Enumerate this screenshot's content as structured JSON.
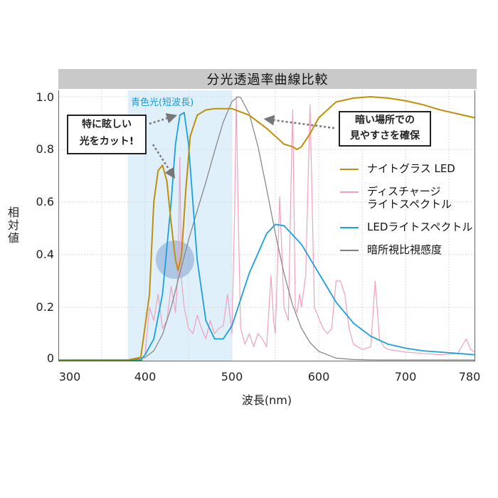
{
  "chart_data": {
    "type": "line",
    "title": "分光透過率曲線比較",
    "xlabel": "波長(nm)",
    "ylabel": "相対値",
    "xlim": [
      300,
      780
    ],
    "ylim": [
      0,
      1.0
    ],
    "x_ticks": [
      "300",
      "400",
      "500",
      "600",
      "700",
      "780"
    ],
    "y_ticks": [
      "1.0",
      "0.8",
      "0.6",
      "0.4",
      "0.2",
      "0"
    ],
    "grid": true,
    "legend_position": "right-middle",
    "highlight_band": {
      "label": "青色光(短波長)",
      "x_range": [
        380,
        500
      ],
      "color": "#dff0fb"
    },
    "annotations": [
      {
        "text": "特に眩しい\n光をカット!",
        "points_to": [
          [
            440,
            0.95
          ],
          [
            435,
            0.38
          ]
        ]
      },
      {
        "text": "暗い場所での\n見やすさを確保",
        "points_to": [
          [
            520,
            0.9
          ]
        ]
      }
    ],
    "series": [
      {
        "name": "ナイトグラス LED",
        "color": "#c08f0a",
        "x": [
          300,
          380,
          395,
          405,
          410,
          415,
          420,
          425,
          430,
          435,
          438,
          442,
          447,
          452,
          460,
          470,
          480,
          500,
          520,
          540,
          560,
          570,
          575,
          580,
          590,
          600,
          620,
          640,
          660,
          680,
          700,
          720,
          740,
          760,
          780
        ],
        "values": [
          0,
          0,
          0.01,
          0.25,
          0.6,
          0.72,
          0.74,
          0.68,
          0.52,
          0.38,
          0.34,
          0.4,
          0.65,
          0.85,
          0.93,
          0.95,
          0.955,
          0.955,
          0.93,
          0.88,
          0.82,
          0.81,
          0.8,
          0.81,
          0.86,
          0.92,
          0.98,
          0.995,
          1.0,
          0.995,
          0.985,
          0.97,
          0.95,
          0.935,
          0.92
        ]
      },
      {
        "name": "ディスチャージ\nライトスペクトル",
        "color": "#f0a0c0",
        "x": [
          400,
          405,
          410,
          415,
          420,
          425,
          430,
          435,
          438,
          440,
          442,
          445,
          450,
          455,
          460,
          465,
          470,
          475,
          480,
          485,
          490,
          495,
          500,
          503,
          505,
          507,
          510,
          515,
          520,
          525,
          530,
          535,
          540,
          545,
          548,
          550,
          555,
          560,
          565,
          568,
          570,
          573,
          575,
          578,
          580,
          585,
          590,
          595,
          600,
          605,
          610,
          615,
          620,
          625,
          630,
          635,
          640,
          645,
          650,
          660,
          665,
          670,
          675,
          680,
          700,
          720,
          740,
          760,
          770,
          775,
          780
        ],
        "values": [
          0.02,
          0.2,
          0.15,
          0.25,
          0.12,
          0.15,
          0.28,
          0.18,
          0.35,
          0.77,
          0.3,
          0.2,
          0.12,
          0.1,
          0.17,
          0.12,
          0.08,
          0.15,
          0.1,
          0.12,
          0.13,
          0.25,
          0.1,
          0.55,
          1.0,
          0.6,
          0.12,
          0.06,
          0.1,
          0.05,
          0.1,
          0.08,
          0.05,
          0.32,
          0.15,
          0.1,
          0.62,
          0.2,
          0.15,
          0.66,
          0.95,
          0.2,
          0.18,
          0.25,
          0.2,
          0.32,
          0.97,
          0.2,
          0.16,
          0.12,
          0.1,
          0.12,
          0.3,
          0.3,
          0.25,
          0.12,
          0.06,
          0.05,
          0.04,
          0.05,
          0.3,
          0.08,
          0.05,
          0.04,
          0.03,
          0.025,
          0.02,
          0.025,
          0.08,
          0.04,
          0.03
        ]
      },
      {
        "name": "LEDライトスペクトル",
        "color": "#1aa0dc",
        "x": [
          300,
          395,
          400,
          410,
          420,
          430,
          435,
          440,
          445,
          450,
          455,
          460,
          470,
          480,
          490,
          500,
          520,
          540,
          550,
          560,
          580,
          600,
          620,
          640,
          660,
          680,
          700,
          720,
          740,
          760,
          780
        ],
        "values": [
          0,
          0,
          0.02,
          0.08,
          0.25,
          0.6,
          0.82,
          0.93,
          0.94,
          0.82,
          0.6,
          0.38,
          0.15,
          0.08,
          0.08,
          0.13,
          0.33,
          0.48,
          0.515,
          0.51,
          0.44,
          0.33,
          0.22,
          0.14,
          0.09,
          0.06,
          0.045,
          0.035,
          0.03,
          0.025,
          0.02
        ]
      },
      {
        "name": "暗所視比視感度",
        "color": "#808080",
        "x": [
          300,
          380,
          390,
          400,
          410,
          420,
          430,
          440,
          450,
          460,
          470,
          480,
          490,
          500,
          507,
          510,
          520,
          530,
          540,
          550,
          560,
          570,
          580,
          590,
          600,
          620,
          640,
          660,
          680,
          700,
          780
        ],
        "values": [
          0,
          0,
          0.003,
          0.01,
          0.035,
          0.097,
          0.2,
          0.33,
          0.455,
          0.567,
          0.676,
          0.793,
          0.904,
          0.982,
          1.0,
          0.997,
          0.935,
          0.811,
          0.65,
          0.481,
          0.329,
          0.208,
          0.121,
          0.066,
          0.033,
          0.007,
          0.0015,
          0.0003,
          0,
          0,
          0
        ]
      }
    ]
  },
  "title": "分光透過率曲線比較",
  "axis": {
    "y_ticks": [
      "1.0",
      "0.8",
      "0.6",
      "0.4",
      "0.2",
      "0"
    ],
    "x_ticks": [
      "300",
      "400",
      "500",
      "600",
      "700",
      "780"
    ],
    "ylabel": "相対値",
    "xlabel": "波長(nm)"
  },
  "band_label": "青色光(短波長)",
  "callouts": {
    "left_line1": "特に眩しい",
    "left_line2": "光をカット!",
    "right_line1": "暗い場所での",
    "right_line2": "見やすさを確保"
  },
  "legend": [
    {
      "label": "ナイトグラス LED",
      "color": "#c08f0a"
    },
    {
      "label": "ディスチャージ\nライトスペクトル",
      "color": "#f0a0c0"
    },
    {
      "label": "LEDライトスペクトル",
      "color": "#1aa0dc"
    },
    {
      "label": "暗所視比視感度",
      "color": "#808080"
    }
  ],
  "colors": {
    "band": "#dff0fb",
    "title_bar": "#c9c9c9",
    "circle": "#7a9ccc"
  }
}
